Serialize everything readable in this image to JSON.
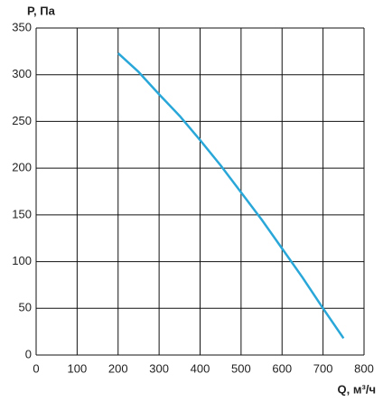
{
  "chart_data": {
    "type": "line",
    "ylabel": "P, Па",
    "xlabel": "Q, м³/ч",
    "x": [
      200,
      250,
      300,
      350,
      400,
      450,
      500,
      550,
      600,
      650,
      700,
      750
    ],
    "series": [
      {
        "color": "#29a7d8",
        "values": [
          323,
          303,
          279,
          256,
          230,
          203,
          174,
          145,
          114,
          83,
          50,
          18
        ]
      }
    ],
    "xlim": [
      0,
      800
    ],
    "xticks": [
      0,
      100,
      200,
      300,
      400,
      500,
      600,
      700,
      800
    ],
    "ylim": [
      0,
      350
    ],
    "yticks": [
      0,
      50,
      100,
      150,
      200,
      250,
      300,
      350
    ],
    "grid": true
  }
}
